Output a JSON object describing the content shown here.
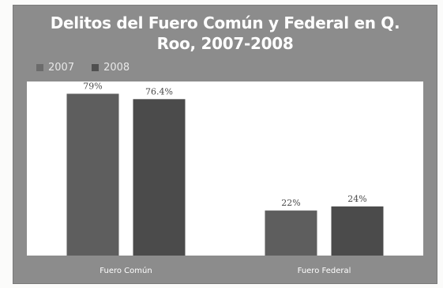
{
  "chart_data": {
    "type": "bar",
    "title_lines": [
      "Delitos del Fuero Común y Federal en Q.",
      "Roo, 2007-2008"
    ],
    "categories": [
      "Fuero Común",
      "Fuero Federal"
    ],
    "series": [
      {
        "name": "2007",
        "values": [
          79,
          22
        ],
        "labels": [
          "79%",
          "22%"
        ],
        "color": "#5e5e5e"
      },
      {
        "name": "2008",
        "values": [
          76.4,
          24
        ],
        "labels": [
          "76.4%",
          "24%"
        ],
        "color": "#4b4b4b"
      }
    ],
    "ylim": [
      0,
      85
    ],
    "legend_position": "top-left",
    "grid": false
  },
  "colors": {
    "panel": "#8c8c8c",
    "plot_area": "#ffffff",
    "legend_swatch_2007": "#6b6b6b",
    "legend_swatch_2008": "#505050"
  }
}
